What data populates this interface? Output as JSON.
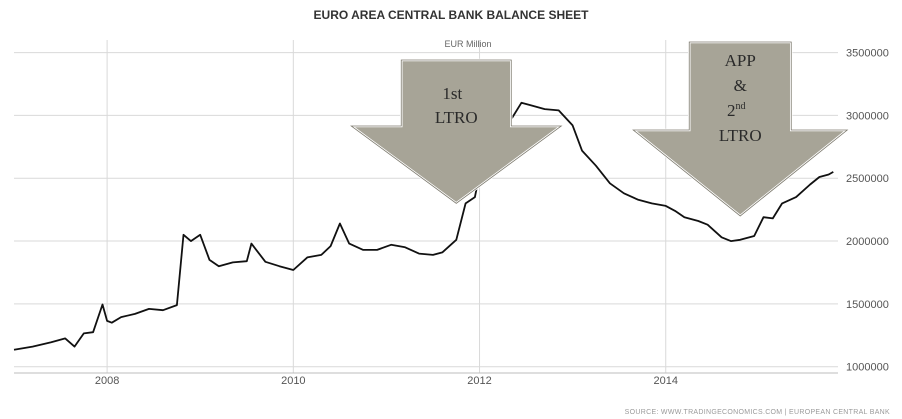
{
  "chart_data": {
    "type": "line",
    "title": "EURO AREA CENTRAL BANK BALANCE SHEET",
    "subtitle": "EUR Million",
    "source": "SOURCE: WWW.TRADINGECONOMICS.COM | EUROPEAN CENTRAL BANK",
    "xlim": [
      2007.0,
      2015.85
    ],
    "ylim": [
      950000,
      3600000
    ],
    "x_ticks": [
      2008,
      2010,
      2012,
      2014
    ],
    "y_ticks": [
      1000000,
      1500000,
      2000000,
      2500000,
      3000000,
      3500000
    ],
    "grid": true,
    "y_axis_side": "right",
    "line_color": "#111111",
    "series": [
      {
        "x": [
          2007.0,
          2007.2,
          2007.4,
          2007.55,
          2007.65,
          2007.75,
          2007.85,
          2007.95,
          2008.0,
          2008.05,
          2008.15,
          2008.3,
          2008.45,
          2008.6,
          2008.75,
          2008.82,
          2008.9,
          2009.0,
          2009.1,
          2009.2,
          2009.35,
          2009.5,
          2009.55,
          2009.7,
          2009.85,
          2010.0,
          2010.15,
          2010.3,
          2010.4,
          2010.5,
          2010.6,
          2010.75,
          2010.9,
          2011.05,
          2011.2,
          2011.35,
          2011.5,
          2011.6,
          2011.75,
          2011.85,
          2011.95,
          2012.05,
          2012.15,
          2012.25,
          2012.35,
          2012.45,
          2012.55,
          2012.7,
          2012.85,
          2013.0,
          2013.1,
          2013.25,
          2013.4,
          2013.55,
          2013.7,
          2013.85,
          2014.0,
          2014.1,
          2014.2,
          2014.35,
          2014.45,
          2014.6,
          2014.7,
          2014.8,
          2014.95,
          2015.05,
          2015.15,
          2015.25,
          2015.4,
          2015.55,
          2015.65,
          2015.75,
          2015.8
        ],
        "y": [
          1135000,
          1160000,
          1195000,
          1225000,
          1160000,
          1265000,
          1275000,
          1495000,
          1365000,
          1350000,
          1395000,
          1420000,
          1460000,
          1450000,
          1490000,
          2050000,
          2000000,
          2050000,
          1850000,
          1800000,
          1830000,
          1840000,
          1980000,
          1835000,
          1800000,
          1770000,
          1870000,
          1890000,
          1960000,
          2140000,
          1980000,
          1930000,
          1930000,
          1970000,
          1950000,
          1900000,
          1890000,
          1910000,
          2010000,
          2300000,
          2350000,
          2720000,
          2930000,
          2960000,
          2980000,
          3100000,
          3080000,
          3050000,
          3040000,
          2920000,
          2720000,
          2600000,
          2460000,
          2380000,
          2330000,
          2300000,
          2280000,
          2240000,
          2190000,
          2160000,
          2130000,
          2030000,
          2000000,
          2010000,
          2040000,
          2190000,
          2180000,
          2300000,
          2350000,
          2450000,
          2510000,
          2530000,
          2550000
        ]
      }
    ],
    "annotations": [
      {
        "lines": [
          "1st",
          "LTRO"
        ],
        "x": 2011.75,
        "tip_y": 2300000,
        "fill": "#a7a497"
      },
      {
        "lines": [
          "APP",
          "&",
          "2nd",
          "LTRO"
        ],
        "x": 2014.8,
        "tip_y": 2200000,
        "fill": "#a7a497"
      }
    ]
  }
}
